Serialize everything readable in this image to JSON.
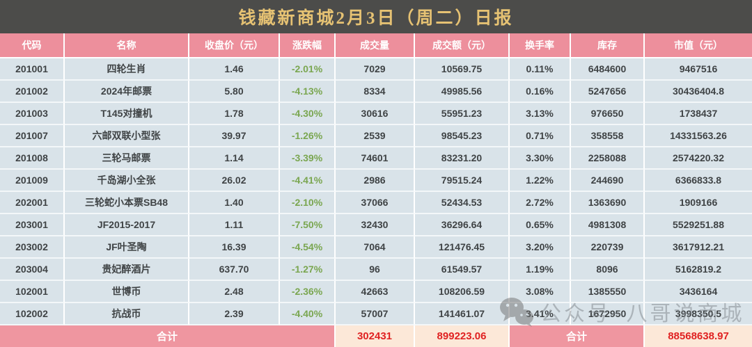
{
  "banner": {
    "title": "钱藏新商城2月3日（周二）日报"
  },
  "colors": {
    "banner_bg": "#4c4c4a",
    "title_gold": "#e6c273",
    "header_pink": "#ed8f9c",
    "row_bg": "#d9e3e9",
    "change_green": "#7aa650",
    "footer_cream": "#fce8d8",
    "footer_red": "#e02222"
  },
  "table": {
    "columns": [
      "代码",
      "名称",
      "收盘价（元）",
      "涨跌幅",
      "成交量",
      "成交额（元）",
      "换手率",
      "库存",
      "市值（元）"
    ],
    "rows": [
      [
        "201001",
        "四轮生肖",
        "1.46",
        "-2.01%",
        "7029",
        "10569.75",
        "0.11%",
        "6484600",
        "9467516"
      ],
      [
        "201002",
        "2024年邮票",
        "5.80",
        "-4.13%",
        "8334",
        "49985.56",
        "0.16%",
        "5247656",
        "30436404.8"
      ],
      [
        "201003",
        "T145对撞机",
        "1.78",
        "-4.30%",
        "30616",
        "55951.23",
        "3.13%",
        "976650",
        "1738437"
      ],
      [
        "201007",
        "六邮双联小型张",
        "39.97",
        "-1.26%",
        "2539",
        "98545.23",
        "0.71%",
        "358558",
        "14331563.26"
      ],
      [
        "201008",
        "三轮马邮票",
        "1.14",
        "-3.39%",
        "74601",
        "83231.20",
        "3.30%",
        "2258088",
        "2574220.32"
      ],
      [
        "201009",
        "千岛湖小全张",
        "26.02",
        "-4.41%",
        "2986",
        "79515.24",
        "1.22%",
        "244690",
        "6366833.8"
      ],
      [
        "202001",
        "三轮蛇小本票SB48",
        "1.40",
        "-2.10%",
        "37066",
        "52434.53",
        "2.72%",
        "1363690",
        "1909166"
      ],
      [
        "203001",
        "JF2015-2017",
        "1.11",
        "-7.50%",
        "32430",
        "36296.64",
        "0.65%",
        "4981308",
        "5529251.88"
      ],
      [
        "203002",
        "JF叶圣陶",
        "16.39",
        "-4.54%",
        "7064",
        "121476.45",
        "3.20%",
        "220739",
        "3617912.21"
      ],
      [
        "203004",
        "贵妃醉酒片",
        "637.70",
        "-1.27%",
        "96",
        "61549.57",
        "1.19%",
        "8096",
        "5162819.2"
      ],
      [
        "102001",
        "世博币",
        "2.48",
        "-2.36%",
        "42663",
        "108206.59",
        "3.08%",
        "1385550",
        "3436164"
      ],
      [
        "102002",
        "抗战币",
        "2.39",
        "-4.40%",
        "57007",
        "141461.07",
        "3.41%",
        "1672950",
        "3998350.5"
      ]
    ],
    "footer": {
      "total_label_left": "合计",
      "volume_total": "302431",
      "turnover_total": "899223.06",
      "total_label_right": "合计",
      "market_value_total": "88568638.97"
    }
  },
  "watermark": {
    "icon": "wechat-icon",
    "text": "公众号~八哥说商城"
  }
}
